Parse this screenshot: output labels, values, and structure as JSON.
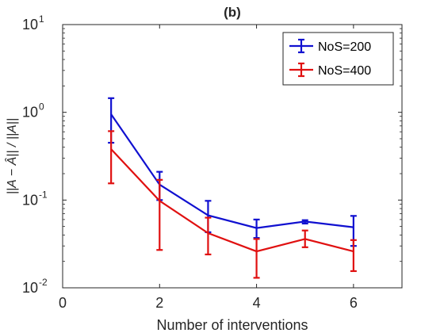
{
  "chart_data": {
    "type": "line",
    "title": "(b)",
    "xlabel": "Number of interventions",
    "ylabel": "||A − Â|| / ||A||",
    "xlim": [
      0,
      7
    ],
    "ylim": [
      0.01,
      10
    ],
    "yscale": "log",
    "grid": false,
    "legend_position": "top-right",
    "x_ticks": [
      {
        "value": 0,
        "label": "0"
      },
      {
        "value": 2,
        "label": "2"
      },
      {
        "value": 4,
        "label": "4"
      },
      {
        "value": 6,
        "label": "6"
      }
    ],
    "y_ticks": [
      {
        "value": 0.01,
        "base": "10",
        "exp": "-2"
      },
      {
        "value": 0.1,
        "base": "10",
        "exp": "-1"
      },
      {
        "value": 1,
        "base": "10",
        "exp": "0"
      },
      {
        "value": 10,
        "base": "10",
        "exp": "1"
      }
    ],
    "x": [
      1,
      2,
      3,
      4,
      5,
      6
    ],
    "series": [
      {
        "name": "NoS=200",
        "color": "#1010d0",
        "values": [
          0.95,
          0.15,
          0.067,
          0.048,
          0.057,
          0.049
        ],
        "err_lower": [
          0.45,
          0.1,
          0.043,
          0.037,
          0.054,
          0.03
        ],
        "err_upper": [
          1.45,
          0.21,
          0.098,
          0.06,
          0.059,
          0.066
        ]
      },
      {
        "name": "NoS=400",
        "color": "#e01010",
        "values": [
          0.38,
          0.098,
          0.042,
          0.026,
          0.036,
          0.026
        ],
        "err_lower": [
          0.155,
          0.027,
          0.024,
          0.013,
          0.029,
          0.0155
        ],
        "err_upper": [
          0.61,
          0.17,
          0.063,
          0.036,
          0.045,
          0.035
        ]
      }
    ]
  }
}
